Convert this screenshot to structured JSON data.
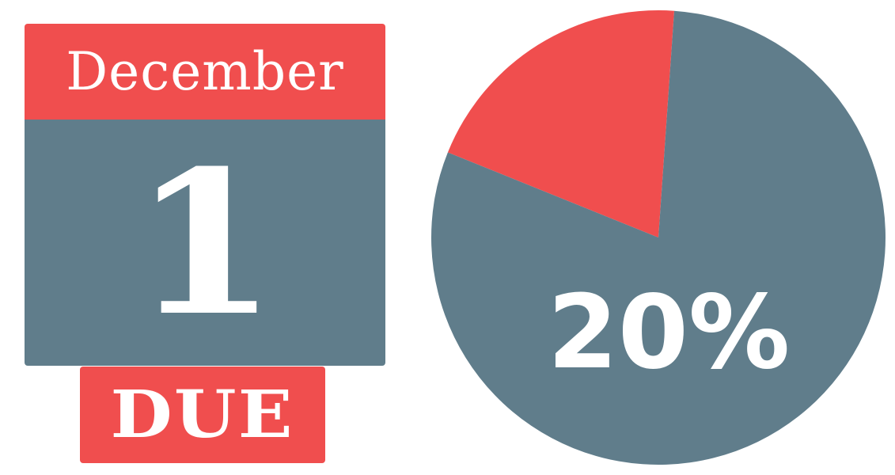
{
  "colors": {
    "accent": "#f04e4e",
    "slate": "#607d8b",
    "text": "#ffffff"
  },
  "calendar": {
    "month": "December",
    "day": "1",
    "badge": "DUE"
  },
  "chart_data": {
    "type": "pie",
    "values": [
      20,
      80
    ],
    "highlight_label": "20%"
  }
}
